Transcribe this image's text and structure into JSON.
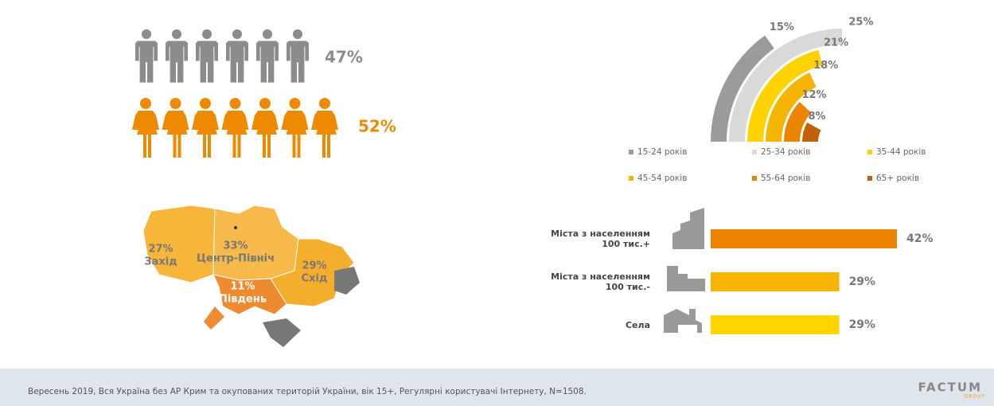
{
  "chart_data": [
    {
      "type": "pictogram",
      "categories": [
        "чоловіки",
        "жінки"
      ],
      "values": [
        47,
        52
      ],
      "value_labels": [
        "47%",
        "52%"
      ],
      "colors": [
        "#8c8c8c",
        "#ee8a00"
      ]
    },
    {
      "type": "radial_bar",
      "categories": [
        "15-24 років",
        "25-34 років",
        "35-44 років",
        "45-54 років",
        "55-64 років",
        "65+ років"
      ],
      "values": [
        15,
        25,
        21,
        18,
        12,
        8
      ],
      "value_labels": [
        "15%",
        "25%",
        "21%",
        "18%",
        "12%",
        "8%"
      ],
      "colors": [
        "#9b9b9b",
        "#d9d9d9",
        "#ffd200",
        "#f5b400",
        "#ed8400",
        "#c0600a"
      ]
    },
    {
      "type": "map",
      "categories": [
        "Захід",
        "Центр-Північ",
        "Схід",
        "Південь"
      ],
      "values": [
        27,
        33,
        29,
        11
      ],
      "value_labels": [
        "27%",
        "33%",
        "29%",
        "11%"
      ],
      "colors": [
        "#f7b53a",
        "#f6b94a",
        "#f5ad2c",
        "#ee8a30"
      ]
    },
    {
      "type": "bar",
      "categories": [
        "Міста з населенням\n100 тис.+",
        "Міста з населенням\n100 тис.-",
        "Села"
      ],
      "values": [
        42,
        29,
        29
      ],
      "value_labels": [
        "42%",
        "29%",
        "29%"
      ],
      "colors": [
        "#ee8300",
        "#f6b400",
        "#ffd400"
      ]
    }
  ],
  "footer": {
    "source": "Вересень 2019, Вся Україна без АР Крим та окупованих територій України, вік 15+, Регулярні користувачі Інтернету, N=1508.",
    "logo": "FACTUM",
    "logo_sub": "GROUP"
  }
}
